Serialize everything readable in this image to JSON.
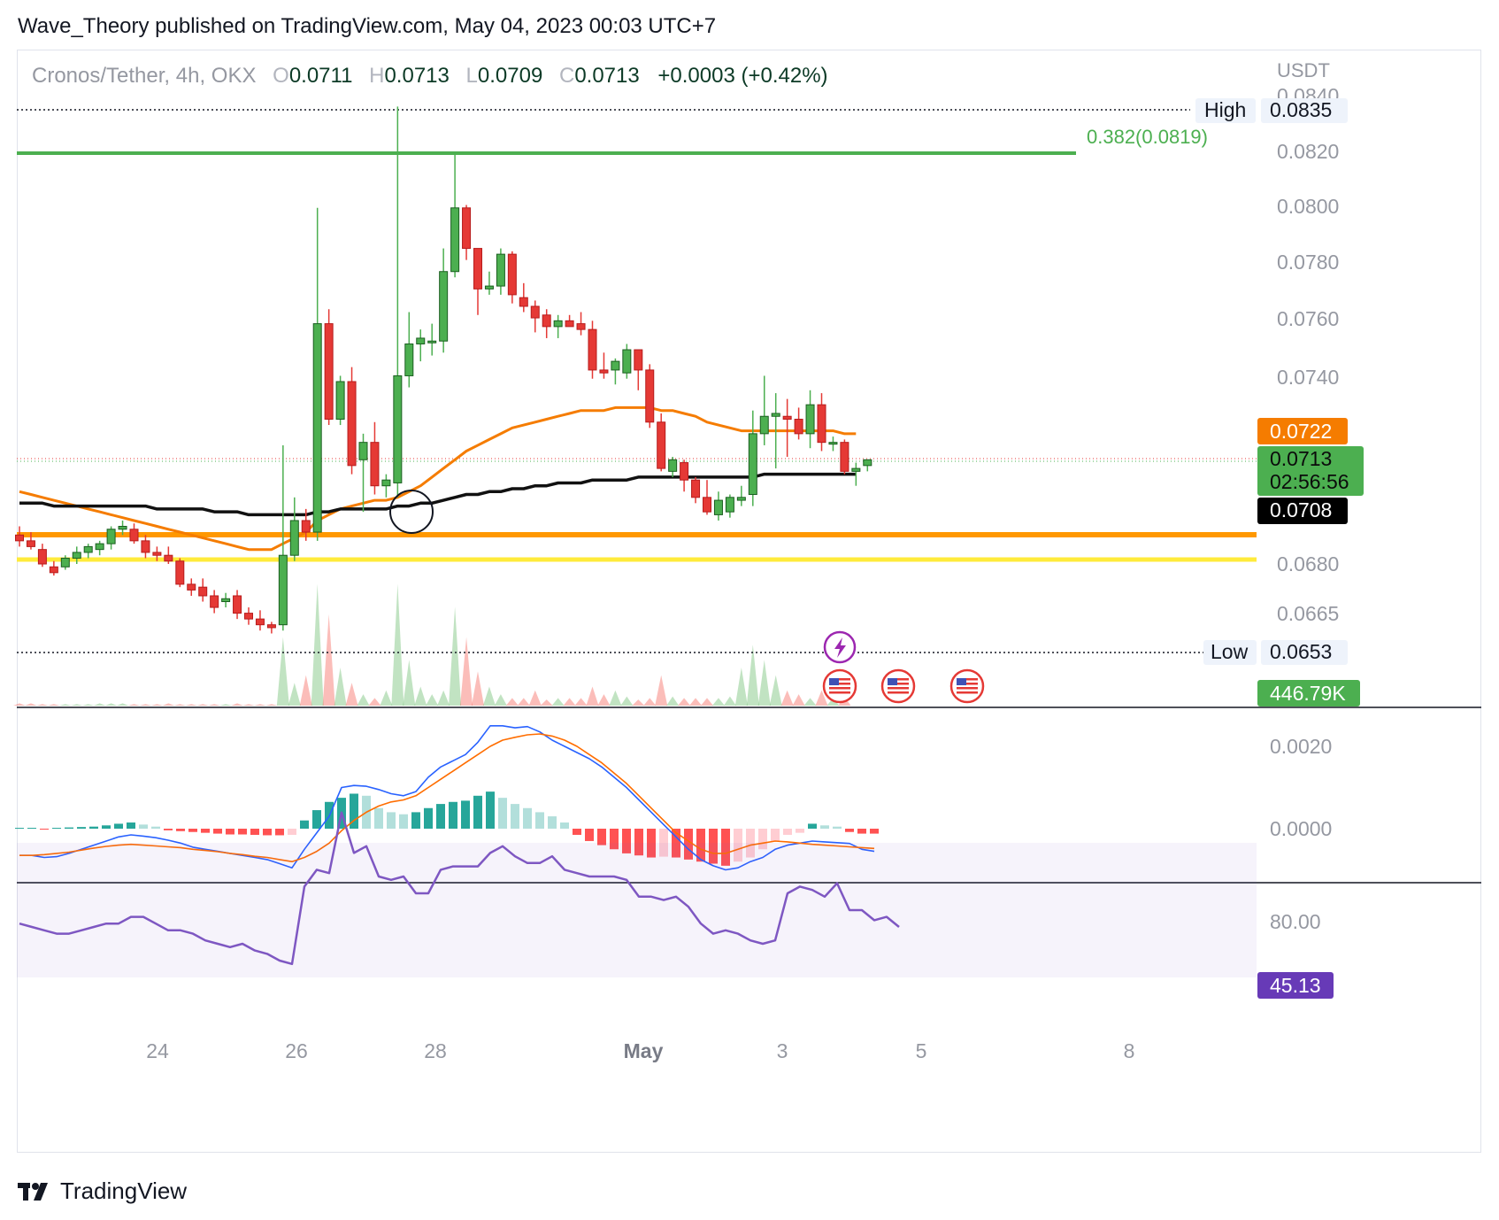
{
  "header": {
    "published_text": "Wave_Theory published on TradingView.com, May 04, 2023 00:03 UTC+7"
  },
  "legend": {
    "symbol": "Cronos/Tether, 4h, OKX",
    "o_label": "O",
    "o_value": "0.0711",
    "h_label": "H",
    "h_value": "0.0713",
    "l_label": "L",
    "l_value": "0.0709",
    "c_label": "C",
    "c_value": "0.0713",
    "change": "+0.0003 (+0.42%)"
  },
  "footer": {
    "brand": "TradingView"
  },
  "colors": {
    "up": "#4caf50",
    "up_dark": "#1b5e20",
    "down": "#e53935",
    "ema_orange": "#f57c00",
    "ema_black": "#111111",
    "fib_green": "#4caf50",
    "support_orange": "#ff9800",
    "support_yellow": "#ffeb3b",
    "macd_line": "#2962ff",
    "signal_line": "#ff6d00",
    "rsi": "#7e57c2"
  },
  "chart_data": [
    {
      "type": "candlestick",
      "price_axis_unit": "USDT",
      "price_ticks": [
        "0.0840",
        "0.0820",
        "0.0800",
        "0.0780",
        "0.0760",
        "0.0740",
        "0.0680",
        "0.0665"
      ],
      "x_ticks": [
        "24",
        "26",
        "28",
        "May",
        "3",
        "5",
        "8"
      ],
      "labels": {
        "high_label": "High",
        "high_value": "0.0835",
        "low_label": "Low",
        "low_value": "0.0653",
        "fib": "0.382(0.0819)",
        "ema_orange_value": "0.0722",
        "last_price": "0.0713",
        "countdown": "02:56:56",
        "ema_black_value": "0.0708",
        "volume_value": "446.79K"
      },
      "levels": {
        "fib_0382": 0.0819,
        "high": 0.0835,
        "low": 0.0653,
        "support_orange": 0.0691,
        "support_yellow": 0.0683
      },
      "ohlc": [
        [
          0.0687,
          0.069,
          0.0683,
          0.0685
        ],
        [
          0.0685,
          0.0688,
          0.0682,
          0.0683
        ],
        [
          0.0682,
          0.0684,
          0.0676,
          0.0677
        ],
        [
          0.0676,
          0.0678,
          0.0673,
          0.0674
        ],
        [
          0.0676,
          0.068,
          0.0675,
          0.0679
        ],
        [
          0.0679,
          0.0683,
          0.0677,
          0.0681
        ],
        [
          0.0681,
          0.0684,
          0.0679,
          0.0683
        ],
        [
          0.0682,
          0.0685,
          0.068,
          0.0684
        ],
        [
          0.0684,
          0.069,
          0.0682,
          0.0689
        ],
        [
          0.0689,
          0.0692,
          0.0687,
          0.069
        ],
        [
          0.0689,
          0.0691,
          0.0684,
          0.0685
        ],
        [
          0.0685,
          0.0687,
          0.0679,
          0.0681
        ],
        [
          0.0681,
          0.0683,
          0.0678,
          0.068
        ],
        [
          0.068,
          0.0683,
          0.0677,
          0.0678
        ],
        [
          0.0678,
          0.0679,
          0.0669,
          0.067
        ],
        [
          0.067,
          0.0672,
          0.0666,
          0.0668
        ],
        [
          0.0669,
          0.0672,
          0.0664,
          0.0666
        ],
        [
          0.0666,
          0.0668,
          0.066,
          0.0662
        ],
        [
          0.0664,
          0.0667,
          0.0662,
          0.0665
        ],
        [
          0.0666,
          0.0668,
          0.0658,
          0.066
        ],
        [
          0.066,
          0.0662,
          0.0656,
          0.0658
        ],
        [
          0.0658,
          0.0661,
          0.0654,
          0.0656
        ],
        [
          0.0656,
          0.0657,
          0.0653,
          0.0655
        ],
        [
          0.0656,
          0.0718,
          0.0654,
          0.068
        ],
        [
          0.068,
          0.07,
          0.0678,
          0.0692
        ],
        [
          0.0692,
          0.0696,
          0.0685,
          0.0688
        ],
        [
          0.0688,
          0.08,
          0.0685,
          0.076
        ],
        [
          0.076,
          0.0765,
          0.0725,
          0.0727
        ],
        [
          0.0727,
          0.0742,
          0.0725,
          0.074
        ],
        [
          0.074,
          0.0745,
          0.0708,
          0.0711
        ],
        [
          0.0713,
          0.0722,
          0.0695,
          0.0719
        ],
        [
          0.0719,
          0.0726,
          0.0701,
          0.0704
        ],
        [
          0.0704,
          0.0708,
          0.07,
          0.0706
        ],
        [
          0.0705,
          0.0835,
          0.07,
          0.0742
        ],
        [
          0.0742,
          0.0764,
          0.0738,
          0.0753
        ],
        [
          0.0753,
          0.0758,
          0.0747,
          0.0755
        ],
        [
          0.0754,
          0.076,
          0.0749,
          0.0754
        ],
        [
          0.0754,
          0.0786,
          0.075,
          0.0778
        ],
        [
          0.0778,
          0.0819,
          0.0776,
          0.08
        ],
        [
          0.08,
          0.0801,
          0.0782,
          0.0786
        ],
        [
          0.0786,
          0.0786,
          0.0763,
          0.0772
        ],
        [
          0.0772,
          0.0778,
          0.077,
          0.0773
        ],
        [
          0.0773,
          0.0786,
          0.077,
          0.0784
        ],
        [
          0.0784,
          0.0785,
          0.0767,
          0.077
        ],
        [
          0.0769,
          0.0774,
          0.0764,
          0.0766
        ],
        [
          0.0766,
          0.0768,
          0.0757,
          0.0762
        ],
        [
          0.0763,
          0.0765,
          0.0755,
          0.0759
        ],
        [
          0.0759,
          0.0763,
          0.0755,
          0.0761
        ],
        [
          0.0761,
          0.0763,
          0.0759,
          0.0759
        ],
        [
          0.076,
          0.0764,
          0.0756,
          0.0758
        ],
        [
          0.0758,
          0.0761,
          0.0741,
          0.0744
        ],
        [
          0.0744,
          0.075,
          0.0741,
          0.0743
        ],
        [
          0.0744,
          0.0748,
          0.0739,
          0.0747
        ],
        [
          0.0743,
          0.0753,
          0.0741,
          0.0751
        ],
        [
          0.0751,
          0.0751,
          0.0737,
          0.0744
        ],
        [
          0.0744,
          0.0746,
          0.0724,
          0.0726
        ],
        [
          0.0726,
          0.0729,
          0.0709,
          0.071
        ],
        [
          0.0709,
          0.0714,
          0.0707,
          0.0713
        ],
        [
          0.0712,
          0.0713,
          0.0702,
          0.0706
        ],
        [
          0.0706,
          0.0707,
          0.0698,
          0.07
        ],
        [
          0.07,
          0.0706,
          0.0694,
          0.0695
        ],
        [
          0.0694,
          0.0702,
          0.0692,
          0.0699
        ],
        [
          0.0695,
          0.0701,
          0.0693,
          0.07
        ],
        [
          0.0699,
          0.0704,
          0.0697,
          0.07
        ],
        [
          0.0701,
          0.073,
          0.0697,
          0.0722
        ],
        [
          0.0722,
          0.0742,
          0.0718,
          0.0728
        ],
        [
          0.0728,
          0.0736,
          0.071,
          0.0729
        ],
        [
          0.0728,
          0.0734,
          0.0714,
          0.0727
        ],
        [
          0.0727,
          0.0731,
          0.072,
          0.0722
        ],
        [
          0.0722,
          0.0737,
          0.0717,
          0.0732
        ],
        [
          0.0732,
          0.0736,
          0.0716,
          0.0719
        ],
        [
          0.0719,
          0.0721,
          0.0716,
          0.0719
        ],
        [
          0.0719,
          0.072,
          0.0708,
          0.0709
        ],
        [
          0.0709,
          0.0712,
          0.0704,
          0.071
        ],
        [
          0.0711,
          0.0713,
          0.0709,
          0.0713
        ]
      ],
      "volume": [
        3,
        3,
        2,
        2,
        2,
        2,
        2,
        3,
        3,
        3,
        2,
        2,
        2,
        3,
        2,
        2,
        2,
        2,
        2,
        3,
        2,
        2,
        2,
        90,
        30,
        40,
        160,
        120,
        50,
        30,
        15,
        10,
        20,
        160,
        60,
        25,
        15,
        20,
        130,
        90,
        45,
        25,
        15,
        10,
        10,
        20,
        8,
        10,
        10,
        10,
        25,
        15,
        20,
        12,
        8,
        10,
        40,
        12,
        10,
        10,
        10,
        10,
        12,
        50,
        80,
        60,
        40,
        20,
        15,
        10,
        20,
        10,
        12
      ],
      "ema_orange": [
        0.0702,
        0.0701,
        0.07,
        0.0699,
        0.0698,
        0.0697,
        0.0696,
        0.0695,
        0.0694,
        0.0693,
        0.0692,
        0.0691,
        0.069,
        0.0689,
        0.0688,
        0.0687,
        0.0686,
        0.0685,
        0.0684,
        0.0683,
        0.0682,
        0.0682,
        0.0682,
        0.0684,
        0.0686,
        0.0688,
        0.0692,
        0.0694,
        0.0696,
        0.0697,
        0.0698,
        0.0699,
        0.0699,
        0.07,
        0.0702,
        0.0704,
        0.0707,
        0.071,
        0.0713,
        0.0716,
        0.0718,
        0.072,
        0.0722,
        0.0724,
        0.0725,
        0.0726,
        0.0727,
        0.0728,
        0.0729,
        0.073,
        0.073,
        0.073,
        0.0731,
        0.0731,
        0.0731,
        0.0731,
        0.073,
        0.073,
        0.0729,
        0.0728,
        0.0726,
        0.0725,
        0.0724,
        0.0723,
        0.0723,
        0.0723,
        0.0723,
        0.0723,
        0.0723,
        0.0723,
        0.0723,
        0.0723,
        0.0722,
        0.0722
      ],
      "ema_black": [
        0.0698,
        0.0698,
        0.0698,
        0.0697,
        0.0697,
        0.0697,
        0.0697,
        0.0697,
        0.0697,
        0.0697,
        0.0697,
        0.0697,
        0.0696,
        0.0696,
        0.0696,
        0.0696,
        0.0696,
        0.0695,
        0.0695,
        0.0695,
        0.0694,
        0.0694,
        0.0694,
        0.0694,
        0.0694,
        0.0694,
        0.0695,
        0.0695,
        0.0696,
        0.0696,
        0.0696,
        0.0696,
        0.0696,
        0.0697,
        0.0697,
        0.0698,
        0.0698,
        0.0699,
        0.07,
        0.0701,
        0.0701,
        0.0702,
        0.0702,
        0.0703,
        0.0703,
        0.0704,
        0.0704,
        0.0705,
        0.0705,
        0.0705,
        0.0706,
        0.0706,
        0.0706,
        0.0706,
        0.0707,
        0.0707,
        0.0707,
        0.0707,
        0.0707,
        0.0707,
        0.0707,
        0.0707,
        0.0707,
        0.0707,
        0.0707,
        0.0708,
        0.0708,
        0.0708,
        0.0708,
        0.0708,
        0.0708,
        0.0708,
        0.0708,
        0.0708
      ]
    },
    {
      "type": "macd",
      "y_ticks": [
        "0.0020",
        "0.0000"
      ],
      "macd": [
        -0.00065,
        -0.00065,
        -0.0007,
        -0.00068,
        -0.0006,
        -0.0005,
        -0.0004,
        -0.0003,
        -0.0002,
        -0.00015,
        -0.00018,
        -0.00022,
        -0.00028,
        -0.00035,
        -0.00045,
        -0.0005,
        -0.00055,
        -0.0006,
        -0.00065,
        -0.0007,
        -0.00075,
        -0.00085,
        -0.00095,
        -0.0005,
        -0.0001,
        0.0003,
        0.001,
        0.00105,
        0.00103,
        0.00095,
        0.00085,
        0.0008,
        0.0009,
        0.00125,
        0.0015,
        0.00165,
        0.0018,
        0.0021,
        0.0025,
        0.0025,
        0.00245,
        0.00248,
        0.00235,
        0.00215,
        0.002,
        0.00185,
        0.0017,
        0.0015,
        0.00125,
        0.001,
        0.0007,
        0.0004,
        0.0001,
        -0.0002,
        -0.0005,
        -0.00075,
        -0.0009,
        -0.001,
        -0.00095,
        -0.0008,
        -0.0007,
        -0.0005,
        -0.0004,
        -0.00035,
        -0.0003,
        -0.00032,
        -0.00034,
        -0.00036,
        -0.0005,
        -0.00055
      ],
      "signal": [
        -0.00065,
        -0.00065,
        -0.00063,
        -0.0006,
        -0.00057,
        -0.00052,
        -0.00047,
        -0.00043,
        -0.0004,
        -0.00038,
        -0.0004,
        -0.00042,
        -0.00044,
        -0.00046,
        -0.0005,
        -0.00053,
        -0.00056,
        -0.0006,
        -0.00063,
        -0.00067,
        -0.0007,
        -0.00075,
        -0.0008,
        -0.0007,
        -0.00055,
        -0.00035,
        -5e-05,
        0.0002,
        0.0004,
        0.00055,
        0.00065,
        0.0007,
        0.0008,
        0.001,
        0.0012,
        0.0014,
        0.0016,
        0.0018,
        0.002,
        0.00215,
        0.00222,
        0.00228,
        0.0023,
        0.00225,
        0.00215,
        0.002,
        0.0018,
        0.0016,
        0.00135,
        0.0011,
        0.0008,
        0.0005,
        0.0002,
        -0.0001,
        -0.0003,
        -0.0005,
        -0.0006,
        -0.0006,
        -0.0005,
        -0.0004,
        -0.00035,
        -0.0003,
        -0.00032,
        -0.00035,
        -0.00038,
        -0.0004,
        -0.00042,
        -0.00044,
        -0.00046,
        -0.00048
      ],
      "histogram": [
        2e-05,
        2e-05,
        -2e-05,
        2e-05,
        3e-05,
        4e-05,
        5e-05,
        8e-05,
        0.00012,
        0.00015,
        0.0001,
        5e-05,
        -4e-05,
        -6e-05,
        -8e-05,
        -0.0001,
        -0.00012,
        -0.00014,
        -0.00014,
        -0.00015,
        -0.00016,
        -0.00016,
        -0.00015,
        0.0002,
        0.00045,
        0.00065,
        0.00075,
        0.00085,
        0.0008,
        0.0005,
        0.0004,
        0.00035,
        0.0004,
        0.0005,
        0.0006,
        0.00065,
        0.00068,
        0.0008,
        0.0009,
        0.00075,
        0.0006,
        0.0005,
        0.0004,
        0.0003,
        0.00015,
        -0.00015,
        -0.0003,
        -0.0004,
        -0.0005,
        -0.0006,
        -0.00065,
        -0.0007,
        -0.00068,
        -0.0007,
        -0.00075,
        -0.0008,
        -0.00085,
        -0.0009,
        -0.0008,
        -0.0007,
        -0.0005,
        -0.0003,
        -0.00015,
        -0.0001,
        0.00012,
        8e-05,
        5e-05,
        -8e-05,
        -0.00012,
        -0.00012
      ]
    },
    {
      "type": "rsi",
      "y_ticks": [
        "80.00"
      ],
      "value_label": "45.13",
      "band": [
        30,
        70
      ],
      "rsi": [
        46,
        45,
        44,
        43,
        43,
        44,
        45,
        46,
        46,
        48,
        48,
        46,
        44,
        44,
        43,
        41,
        40,
        39,
        40,
        38,
        37,
        35,
        34,
        57,
        62,
        61,
        79,
        67,
        69,
        60,
        59,
        60,
        55,
        55,
        62,
        63,
        63,
        63,
        67,
        69,
        66,
        64,
        64,
        66,
        62,
        61,
        60,
        60,
        60,
        59,
        54,
        54,
        53,
        54,
        51,
        46,
        43,
        44,
        43,
        41,
        40,
        41,
        55,
        57,
        56,
        54,
        58,
        50,
        50,
        47,
        48,
        45
      ]
    }
  ]
}
